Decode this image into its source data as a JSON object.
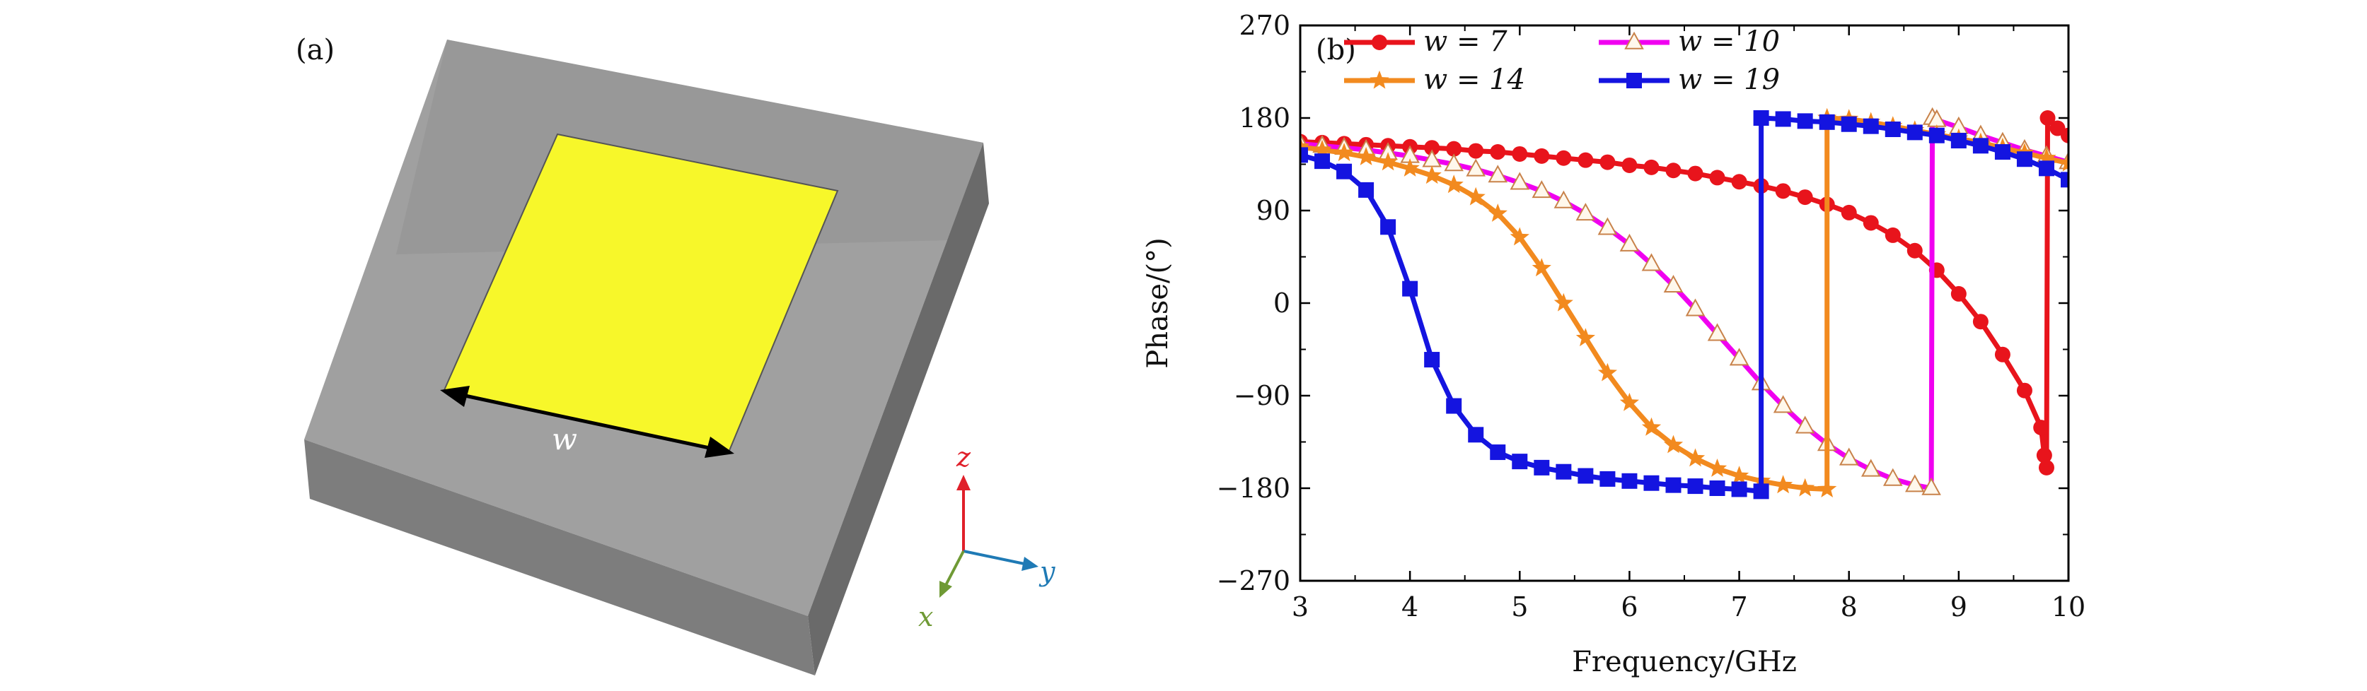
{
  "panel_a": {
    "label": "(a)",
    "dimension_label": "w",
    "axes_labels": {
      "z": "z",
      "y": "y",
      "x": "x"
    },
    "colors": {
      "patch": "#f7f72a",
      "substrate_top": "#9a9a9a",
      "substrate_side_right": "#6e6e6e",
      "substrate_side_front": "#7b7b7b",
      "z_axis": "#e0202a",
      "y_axis": "#1f7ab5",
      "x_axis": "#6f9a35"
    }
  },
  "chart_data": {
    "type": "line",
    "panel_label": "(b)",
    "xlabel": "Frequency/GHz",
    "ylabel": "Phase/(°)",
    "xlim": [
      3,
      10
    ],
    "ylim": [
      -270,
      270
    ],
    "xticks": [
      "3",
      "4",
      "5",
      "6",
      "7",
      "8",
      "9",
      "10"
    ],
    "yticks": [
      "270",
      "180",
      "90",
      "0",
      "−90",
      "−180",
      "−270"
    ],
    "legend_position": "top",
    "series": [
      {
        "name": "w = 7",
        "legend_label": "w = 7",
        "color": "#e8141c",
        "marker": "circle",
        "points": [
          [
            3.0,
            157
          ],
          [
            3.2,
            156
          ],
          [
            3.4,
            155
          ],
          [
            3.6,
            154
          ],
          [
            3.8,
            153
          ],
          [
            4.0,
            152
          ],
          [
            4.2,
            151
          ],
          [
            4.4,
            150
          ],
          [
            4.6,
            148
          ],
          [
            4.8,
            147
          ],
          [
            5.0,
            145
          ],
          [
            5.2,
            143
          ],
          [
            5.4,
            141
          ],
          [
            5.6,
            139
          ],
          [
            5.8,
            137
          ],
          [
            6.0,
            134
          ],
          [
            6.2,
            132
          ],
          [
            6.4,
            129
          ],
          [
            6.6,
            126
          ],
          [
            6.8,
            122
          ],
          [
            7.0,
            118
          ],
          [
            7.2,
            114
          ],
          [
            7.4,
            109
          ],
          [
            7.6,
            103
          ],
          [
            7.8,
            96
          ],
          [
            8.0,
            88
          ],
          [
            8.2,
            78
          ],
          [
            8.4,
            66
          ],
          [
            8.6,
            51
          ],
          [
            8.8,
            32
          ],
          [
            9.0,
            9
          ],
          [
            9.2,
            -18
          ],
          [
            9.4,
            -50
          ],
          [
            9.6,
            -85
          ],
          [
            9.75,
            -121
          ],
          [
            9.78,
            -148
          ],
          [
            9.8,
            -160
          ],
          [
            9.81,
            180
          ],
          [
            9.9,
            170
          ],
          [
            10.0,
            163
          ]
        ]
      },
      {
        "name": "w = 10",
        "legend_label": "w = 10",
        "color": "#f000f0",
        "marker": "triangle-open",
        "points": [
          [
            3.0,
            155
          ],
          [
            3.2,
            153
          ],
          [
            3.4,
            151
          ],
          [
            3.6,
            149
          ],
          [
            3.8,
            146
          ],
          [
            4.0,
            143
          ],
          [
            4.2,
            139
          ],
          [
            4.4,
            135
          ],
          [
            4.6,
            130
          ],
          [
            4.8,
            124
          ],
          [
            5.0,
            117
          ],
          [
            5.2,
            109
          ],
          [
            5.4,
            99
          ],
          [
            5.6,
            87
          ],
          [
            5.8,
            73
          ],
          [
            6.0,
            57
          ],
          [
            6.2,
            38
          ],
          [
            6.4,
            17
          ],
          [
            6.6,
            -6
          ],
          [
            6.8,
            -30
          ],
          [
            7.0,
            -54
          ],
          [
            7.2,
            -78
          ],
          [
            7.4,
            -100
          ],
          [
            7.6,
            -120
          ],
          [
            7.8,
            -137
          ],
          [
            8.0,
            -151
          ],
          [
            8.2,
            -162
          ],
          [
            8.4,
            -171
          ],
          [
            8.6,
            -177
          ],
          [
            8.75,
            -180
          ],
          [
            8.76,
            180
          ],
          [
            8.8,
            178
          ],
          [
            9.0,
            171
          ],
          [
            9.2,
            163
          ],
          [
            9.4,
            156
          ],
          [
            9.6,
            149
          ],
          [
            9.8,
            143
          ],
          [
            10.0,
            137
          ]
        ]
      },
      {
        "name": "w = 14",
        "legend_label": "w = 14",
        "color": "#f28a1f",
        "marker": "star",
        "points": [
          [
            3.0,
            152
          ],
          [
            3.2,
            149
          ],
          [
            3.4,
            146
          ],
          [
            3.6,
            142
          ],
          [
            3.8,
            137
          ],
          [
            4.0,
            131
          ],
          [
            4.2,
            124
          ],
          [
            4.4,
            115
          ],
          [
            4.6,
            103
          ],
          [
            4.8,
            87
          ],
          [
            5.0,
            64
          ],
          [
            5.2,
            34
          ],
          [
            5.4,
            0
          ],
          [
            5.6,
            -34
          ],
          [
            5.8,
            -68
          ],
          [
            6.0,
            -97
          ],
          [
            6.2,
            -121
          ],
          [
            6.4,
            -138
          ],
          [
            6.6,
            -151
          ],
          [
            6.8,
            -161
          ],
          [
            7.0,
            -168
          ],
          [
            7.2,
            -173
          ],
          [
            7.4,
            -177
          ],
          [
            7.6,
            -180
          ],
          [
            7.8,
            -181
          ],
          [
            7.8,
            180
          ],
          [
            8.0,
            179
          ],
          [
            8.2,
            176
          ],
          [
            8.4,
            172
          ],
          [
            8.6,
            168
          ],
          [
            8.8,
            164
          ],
          [
            9.0,
            160
          ],
          [
            9.2,
            156
          ],
          [
            9.4,
            151
          ],
          [
            9.6,
            146
          ],
          [
            9.8,
            141
          ],
          [
            10.0,
            136
          ]
        ]
      },
      {
        "name": "w = 19",
        "legend_label": "w = 19",
        "color": "#1414e0",
        "marker": "square",
        "points": [
          [
            3.0,
            144
          ],
          [
            3.2,
            138
          ],
          [
            3.4,
            128
          ],
          [
            3.6,
            110
          ],
          [
            3.8,
            74
          ],
          [
            4.0,
            14
          ],
          [
            4.2,
            -55
          ],
          [
            4.4,
            -100
          ],
          [
            4.6,
            -128
          ],
          [
            4.8,
            -145
          ],
          [
            5.0,
            -154
          ],
          [
            5.2,
            -160
          ],
          [
            5.4,
            -164
          ],
          [
            5.6,
            -168
          ],
          [
            5.8,
            -171
          ],
          [
            6.0,
            -173
          ],
          [
            6.2,
            -175
          ],
          [
            6.4,
            -177
          ],
          [
            6.6,
            -178
          ],
          [
            6.8,
            -180
          ],
          [
            7.0,
            -181
          ],
          [
            7.2,
            -183
          ],
          [
            7.2,
            180
          ],
          [
            7.4,
            179
          ],
          [
            7.6,
            177
          ],
          [
            7.8,
            176
          ],
          [
            8.0,
            174
          ],
          [
            8.2,
            172
          ],
          [
            8.4,
            169
          ],
          [
            8.6,
            166
          ],
          [
            8.8,
            163
          ],
          [
            9.0,
            158
          ],
          [
            9.2,
            153
          ],
          [
            9.4,
            147
          ],
          [
            9.6,
            140
          ],
          [
            9.8,
            131
          ],
          [
            10.0,
            120
          ]
        ]
      }
    ]
  }
}
